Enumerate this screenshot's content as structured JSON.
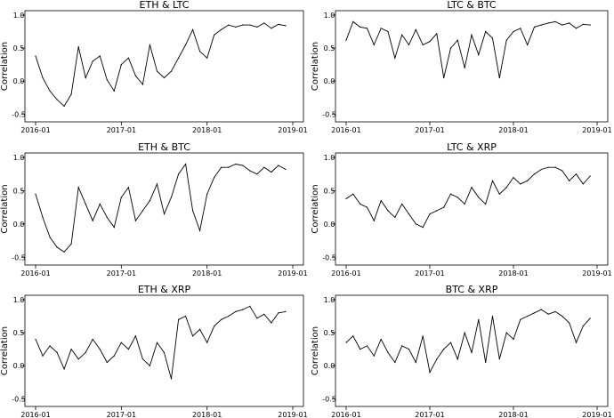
{
  "chart_data": [
    {
      "type": "line",
      "title": "ETH & LTC",
      "ylabel": "Correlation",
      "xlabel": "",
      "ylim": [
        -0.55,
        1.0
      ],
      "yticks": [
        -0.5,
        0.0,
        0.5,
        1.0
      ],
      "ytick_labels": [
        "-0.5",
        "0.0",
        "0.5",
        "1.0"
      ],
      "xlim": [
        "2016-01",
        "2019-01"
      ],
      "xtick_labels": [
        "2016-01",
        "2017-01",
        "2018-01",
        "2019-01"
      ],
      "grid": false,
      "legend": "none",
      "series": [
        {
          "x": [
            "2016-01",
            "2016-02",
            "2016-03",
            "2016-04",
            "2016-05",
            "2016-06",
            "2016-07",
            "2016-08",
            "2016-09",
            "2016-10",
            "2016-11",
            "2016-12",
            "2017-01",
            "2017-02",
            "2017-03",
            "2017-04",
            "2017-05",
            "2017-06",
            "2017-07",
            "2017-08",
            "2017-09",
            "2017-10",
            "2017-11",
            "2017-12",
            "2018-01",
            "2018-02",
            "2018-03",
            "2018-04",
            "2018-05",
            "2018-06",
            "2018-07",
            "2018-08",
            "2018-09",
            "2018-10",
            "2018-11",
            "2018-12"
          ],
          "values": [
            0.38,
            0.05,
            -0.15,
            -0.28,
            -0.38,
            -0.2,
            0.52,
            0.05,
            0.3,
            0.38,
            0.02,
            -0.15,
            0.25,
            0.35,
            0.08,
            -0.05,
            0.55,
            0.15,
            0.05,
            0.15,
            0.35,
            0.55,
            0.78,
            0.45,
            0.35,
            0.7,
            0.78,
            0.85,
            0.82,
            0.85,
            0.85,
            0.82,
            0.88,
            0.8,
            0.86,
            0.84
          ]
        }
      ]
    },
    {
      "type": "line",
      "title": "LTC & BTC",
      "ylabel": "Correlation",
      "xlabel": "",
      "ylim": [
        -0.55,
        1.0
      ],
      "yticks": [
        -0.5,
        0.0,
        0.5,
        1.0
      ],
      "ytick_labels": [
        "-0.5",
        "0.0",
        "0.5",
        "1.0"
      ],
      "xlim": [
        "2016-01",
        "2019-01"
      ],
      "xtick_labels": [
        "2016-01",
        "2017-01",
        "2018-01",
        "2019-01"
      ],
      "grid": false,
      "legend": "none",
      "series": [
        {
          "x": [
            "2016-01",
            "2016-02",
            "2016-03",
            "2016-04",
            "2016-05",
            "2016-06",
            "2016-07",
            "2016-08",
            "2016-09",
            "2016-10",
            "2016-11",
            "2016-12",
            "2017-01",
            "2017-02",
            "2017-03",
            "2017-04",
            "2017-05",
            "2017-06",
            "2017-07",
            "2017-08",
            "2017-09",
            "2017-10",
            "2017-11",
            "2017-12",
            "2018-01",
            "2018-02",
            "2018-03",
            "2018-04",
            "2018-05",
            "2018-06",
            "2018-07",
            "2018-08",
            "2018-09",
            "2018-10",
            "2018-11",
            "2018-12"
          ],
          "values": [
            0.62,
            0.9,
            0.82,
            0.8,
            0.55,
            0.8,
            0.75,
            0.35,
            0.7,
            0.55,
            0.78,
            0.55,
            0.6,
            0.72,
            0.05,
            0.5,
            0.62,
            0.2,
            0.7,
            0.4,
            0.75,
            0.65,
            0.05,
            0.62,
            0.75,
            0.8,
            0.55,
            0.82,
            0.85,
            0.88,
            0.9,
            0.85,
            0.88,
            0.8,
            0.86,
            0.85
          ]
        }
      ]
    },
    {
      "type": "line",
      "title": "ETH & BTC",
      "ylabel": "Correlation",
      "xlabel": "",
      "ylim": [
        -0.55,
        1.0
      ],
      "yticks": [
        -0.5,
        0.0,
        0.5,
        1.0
      ],
      "ytick_labels": [
        "-0.5",
        "0.0",
        "0.5",
        "1.0"
      ],
      "xlim": [
        "2016-01",
        "2019-01"
      ],
      "xtick_labels": [
        "2016-01",
        "2017-01",
        "2018-01",
        "2019-01"
      ],
      "grid": false,
      "legend": "none",
      "series": [
        {
          "x": [
            "2016-01",
            "2016-02",
            "2016-03",
            "2016-04",
            "2016-05",
            "2016-06",
            "2016-07",
            "2016-08",
            "2016-09",
            "2016-10",
            "2016-11",
            "2016-12",
            "2017-01",
            "2017-02",
            "2017-03",
            "2017-04",
            "2017-05",
            "2017-06",
            "2017-07",
            "2017-08",
            "2017-09",
            "2017-10",
            "2017-11",
            "2017-12",
            "2018-01",
            "2018-02",
            "2018-03",
            "2018-04",
            "2018-05",
            "2018-06",
            "2018-07",
            "2018-08",
            "2018-09",
            "2018-10",
            "2018-11",
            "2018-12"
          ],
          "values": [
            0.45,
            0.1,
            -0.2,
            -0.35,
            -0.42,
            -0.3,
            0.55,
            0.3,
            0.05,
            0.3,
            0.1,
            -0.05,
            0.4,
            0.55,
            0.05,
            0.2,
            0.35,
            0.6,
            0.15,
            0.4,
            0.75,
            0.9,
            0.2,
            -0.1,
            0.45,
            0.7,
            0.85,
            0.85,
            0.9,
            0.88,
            0.8,
            0.75,
            0.85,
            0.78,
            0.88,
            0.82
          ]
        }
      ]
    },
    {
      "type": "line",
      "title": "LTC & XRP",
      "ylabel": "Correlation",
      "xlabel": "",
      "ylim": [
        -0.55,
        1.0
      ],
      "yticks": [
        -0.5,
        0.0,
        0.5,
        1.0
      ],
      "ytick_labels": [
        "-0.5",
        "0.0",
        "0.5",
        "1.0"
      ],
      "xlim": [
        "2016-01",
        "2019-01"
      ],
      "xtick_labels": [
        "2016-01",
        "2017-01",
        "2018-01",
        "2019-01"
      ],
      "grid": false,
      "legend": "none",
      "series": [
        {
          "x": [
            "2016-01",
            "2016-02",
            "2016-03",
            "2016-04",
            "2016-05",
            "2016-06",
            "2016-07",
            "2016-08",
            "2016-09",
            "2016-10",
            "2016-11",
            "2016-12",
            "2017-01",
            "2017-02",
            "2017-03",
            "2017-04",
            "2017-05",
            "2017-06",
            "2017-07",
            "2017-08",
            "2017-09",
            "2017-10",
            "2017-11",
            "2017-12",
            "2018-01",
            "2018-02",
            "2018-03",
            "2018-04",
            "2018-05",
            "2018-06",
            "2018-07",
            "2018-08",
            "2018-09",
            "2018-10",
            "2018-11",
            "2018-12"
          ],
          "values": [
            0.38,
            0.45,
            0.3,
            0.25,
            0.05,
            0.35,
            0.2,
            0.1,
            0.3,
            0.15,
            0.0,
            -0.05,
            0.15,
            0.2,
            0.25,
            0.45,
            0.4,
            0.3,
            0.55,
            0.4,
            0.3,
            0.65,
            0.45,
            0.55,
            0.7,
            0.6,
            0.65,
            0.75,
            0.82,
            0.85,
            0.85,
            0.8,
            0.65,
            0.75,
            0.6,
            0.72
          ]
        }
      ]
    },
    {
      "type": "line",
      "title": "ETH & XRP",
      "ylabel": "Correlation",
      "xlabel": "",
      "ylim": [
        -0.55,
        1.0
      ],
      "yticks": [
        -0.5,
        0.0,
        0.5,
        1.0
      ],
      "ytick_labels": [
        "-0.5",
        "0.0",
        "0.5",
        "1.0"
      ],
      "xlim": [
        "2016-01",
        "2019-01"
      ],
      "xtick_labels": [
        "2016-01",
        "2017-01",
        "2018-01",
        "2019-01"
      ],
      "grid": false,
      "legend": "none",
      "series": [
        {
          "x": [
            "2016-01",
            "2016-02",
            "2016-03",
            "2016-04",
            "2016-05",
            "2016-06",
            "2016-07",
            "2016-08",
            "2016-09",
            "2016-10",
            "2016-11",
            "2016-12",
            "2017-01",
            "2017-02",
            "2017-03",
            "2017-04",
            "2017-05",
            "2017-06",
            "2017-07",
            "2017-08",
            "2017-09",
            "2017-10",
            "2017-11",
            "2017-12",
            "2018-01",
            "2018-02",
            "2018-03",
            "2018-04",
            "2018-05",
            "2018-06",
            "2018-07",
            "2018-08",
            "2018-09",
            "2018-10",
            "2018-11",
            "2018-12"
          ],
          "values": [
            0.4,
            0.15,
            0.3,
            0.2,
            -0.05,
            0.25,
            0.1,
            0.2,
            0.4,
            0.25,
            0.05,
            0.15,
            0.35,
            0.25,
            0.45,
            0.1,
            0.0,
            0.35,
            0.2,
            -0.2,
            0.7,
            0.75,
            0.45,
            0.55,
            0.35,
            0.6,
            0.7,
            0.75,
            0.82,
            0.85,
            0.9,
            0.72,
            0.78,
            0.65,
            0.8,
            0.82
          ]
        }
      ]
    },
    {
      "type": "line",
      "title": "BTC & XRP",
      "ylabel": "Correlation",
      "xlabel": "",
      "ylim": [
        -0.55,
        1.0
      ],
      "yticks": [
        -0.5,
        0.0,
        0.5,
        1.0
      ],
      "ytick_labels": [
        "-0.5",
        "0.0",
        "0.5",
        "1.0"
      ],
      "xlim": [
        "2016-01",
        "2019-01"
      ],
      "xtick_labels": [
        "2016-01",
        "2017-01",
        "2018-01",
        "2019-01"
      ],
      "grid": false,
      "legend": "none",
      "series": [
        {
          "x": [
            "2016-01",
            "2016-02",
            "2016-03",
            "2016-04",
            "2016-05",
            "2016-06",
            "2016-07",
            "2016-08",
            "2016-09",
            "2016-10",
            "2016-11",
            "2016-12",
            "2017-01",
            "2017-02",
            "2017-03",
            "2017-04",
            "2017-05",
            "2017-06",
            "2017-07",
            "2017-08",
            "2017-09",
            "2017-10",
            "2017-11",
            "2017-12",
            "2018-01",
            "2018-02",
            "2018-03",
            "2018-04",
            "2018-05",
            "2018-06",
            "2018-07",
            "2018-08",
            "2018-09",
            "2018-10",
            "2018-11",
            "2018-12"
          ],
          "values": [
            0.35,
            0.45,
            0.25,
            0.3,
            0.15,
            0.4,
            0.2,
            0.05,
            0.3,
            0.25,
            0.05,
            0.45,
            -0.1,
            0.1,
            0.25,
            0.35,
            0.1,
            0.5,
            0.2,
            0.7,
            0.05,
            0.75,
            0.1,
            0.5,
            0.4,
            0.7,
            0.75,
            0.8,
            0.85,
            0.78,
            0.82,
            0.75,
            0.65,
            0.35,
            0.6,
            0.72
          ]
        }
      ]
    }
  ]
}
